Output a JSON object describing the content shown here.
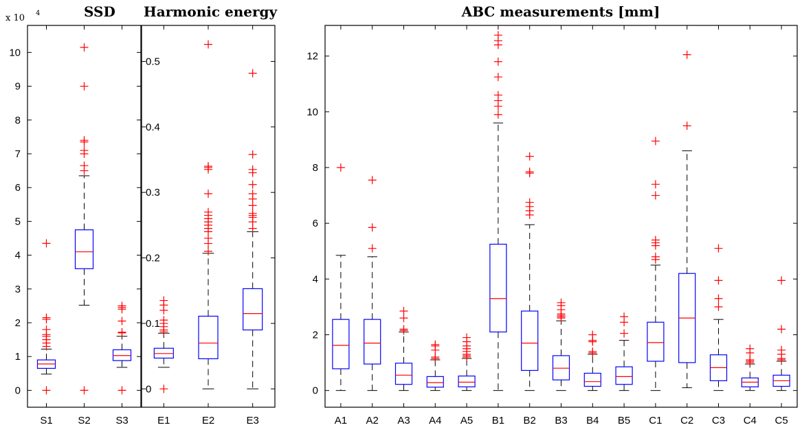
{
  "chart_data": [
    {
      "type": "box",
      "title": "SSD",
      "y_multiplier": {
        "base": "x 10",
        "exponent": "4"
      },
      "ylim": [
        -0.5,
        10.8
      ],
      "yticks": [
        0,
        1,
        2,
        3,
        4,
        5,
        6,
        7,
        8,
        9,
        10
      ],
      "categories": [
        "S1",
        "S2",
        "S3"
      ],
      "boxes": [
        {
          "q1": 0.65,
          "median": 0.78,
          "q3": 0.9,
          "whisker_low": 0.48,
          "whisker_high": 1.22,
          "outliers": [
            0,
            1.3,
            1.4,
            1.5,
            1.6,
            1.65,
            1.8,
            2.1,
            2.15,
            4.35
          ]
        },
        {
          "q1": 3.6,
          "median": 4.1,
          "q3": 4.75,
          "whisker_low": 2.52,
          "whisker_high": 6.35,
          "outliers": [
            0,
            6.5,
            6.65,
            7.0,
            7.1,
            7.35,
            7.4,
            9.0,
            10.15
          ]
        },
        {
          "q1": 0.88,
          "median": 1.03,
          "q3": 1.2,
          "whisker_low": 0.68,
          "whisker_high": 1.6,
          "outliers": [
            0,
            1.7,
            1.72,
            2.05,
            2.4,
            2.45,
            2.5
          ]
        }
      ]
    },
    {
      "type": "box",
      "title": "Harmonic energy",
      "ylim": [
        -0.028,
        0.555
      ],
      "yticks": [
        0,
        0.1,
        0.2,
        0.3,
        0.4,
        0.5
      ],
      "ytick_labels": [
        "0",
        "0.1",
        "0.2",
        "0.3",
        "0.4",
        "0.5"
      ],
      "categories": [
        "E1",
        "E2",
        "E3"
      ],
      "boxes": [
        {
          "q1": 0.047,
          "median": 0.054,
          "q3": 0.062,
          "whisker_low": 0.033,
          "whisker_high": 0.085,
          "outliers": [
            0,
            0.087,
            0.09,
            0.095,
            0.1,
            0.105,
            0.12,
            0.128,
            0.135
          ]
        },
        {
          "q1": 0.046,
          "median": 0.07,
          "q3": 0.111,
          "whisker_low": 0,
          "whisker_high": 0.207,
          "outliers": [
            0.21,
            0.222,
            0.23,
            0.24,
            0.245,
            0.25,
            0.255,
            0.26,
            0.265,
            0.27,
            0.298,
            0.335,
            0.338,
            0.34,
            0.526
          ]
        },
        {
          "q1": 0.09,
          "median": 0.115,
          "q3": 0.153,
          "whisker_low": 0,
          "whisker_high": 0.24,
          "outliers": [
            0.245,
            0.255,
            0.262,
            0.265,
            0.268,
            0.28,
            0.29,
            0.298,
            0.312,
            0.33,
            0.335,
            0.358,
            0.482
          ]
        }
      ]
    },
    {
      "type": "box",
      "title": "ABC measurements [mm]",
      "ylim": [
        -0.6,
        13.1
      ],
      "yticks": [
        0,
        2,
        4,
        6,
        8,
        10,
        12
      ],
      "categories": [
        "A1",
        "A2",
        "A3",
        "A4",
        "A5",
        "B1",
        "B2",
        "B3",
        "B4",
        "B5",
        "C1",
        "C2",
        "C3",
        "C4",
        "C5"
      ],
      "boxes": [
        {
          "q1": 0.78,
          "median": 1.62,
          "q3": 2.55,
          "whisker_low": 0,
          "whisker_high": 4.85,
          "outliers": [
            8.0
          ]
        },
        {
          "q1": 0.95,
          "median": 1.7,
          "q3": 2.55,
          "whisker_low": 0,
          "whisker_high": 4.8,
          "outliers": [
            5.1,
            5.85,
            7.55
          ]
        },
        {
          "q1": 0.22,
          "median": 0.55,
          "q3": 0.98,
          "whisker_low": 0,
          "whisker_high": 2.1,
          "outliers": [
            2.15,
            2.2,
            2.6,
            2.85
          ]
        },
        {
          "q1": 0.12,
          "median": 0.28,
          "q3": 0.5,
          "whisker_low": 0,
          "whisker_high": 1.1,
          "outliers": [
            1.15,
            1.2,
            1.45,
            1.6,
            1.65
          ]
        },
        {
          "q1": 0.13,
          "median": 0.3,
          "q3": 0.52,
          "whisker_low": 0,
          "whisker_high": 1.15,
          "outliers": [
            1.2,
            1.25,
            1.3,
            1.4,
            1.5,
            1.6,
            1.75,
            1.9
          ]
        },
        {
          "q1": 2.1,
          "median": 3.3,
          "q3": 5.25,
          "whisker_low": 0,
          "whisker_high": 9.6,
          "outliers": [
            9.9,
            10.2,
            10.4,
            10.6,
            11.25,
            11.8,
            12.4,
            12.55,
            12.75
          ]
        },
        {
          "q1": 0.72,
          "median": 1.7,
          "q3": 2.85,
          "whisker_low": 0,
          "whisker_high": 5.95,
          "outliers": [
            6.3,
            6.45,
            6.6,
            6.75,
            7.8,
            7.85,
            8.4
          ]
        },
        {
          "q1": 0.38,
          "median": 0.8,
          "q3": 1.25,
          "whisker_low": 0,
          "whisker_high": 2.5,
          "outliers": [
            2.6,
            2.65,
            2.7,
            2.75,
            2.9,
            3.05,
            3.15
          ]
        },
        {
          "q1": 0.15,
          "median": 0.32,
          "q3": 0.62,
          "whisker_low": 0,
          "whisker_high": 1.3,
          "outliers": [
            1.35,
            1.4,
            1.75,
            1.8,
            2.0
          ]
        },
        {
          "q1": 0.22,
          "median": 0.5,
          "q3": 0.85,
          "whisker_low": 0,
          "whisker_high": 1.8,
          "outliers": [
            2.05,
            2.45,
            2.65
          ]
        },
        {
          "q1": 1.05,
          "median": 1.72,
          "q3": 2.45,
          "whisker_low": 0,
          "whisker_high": 4.5,
          "outliers": [
            4.7,
            4.8,
            5.2,
            5.3,
            5.4,
            7.0,
            7.4,
            8.95
          ]
        },
        {
          "q1": 1.0,
          "median": 2.6,
          "q3": 4.2,
          "whisker_low": 0.1,
          "whisker_high": 8.6,
          "outliers": [
            9.5,
            12.05
          ]
        },
        {
          "q1": 0.35,
          "median": 0.82,
          "q3": 1.28,
          "whisker_low": 0,
          "whisker_high": 2.55,
          "outliers": [
            3.0,
            3.3,
            3.95,
            5.1
          ]
        },
        {
          "q1": 0.13,
          "median": 0.3,
          "q3": 0.45,
          "whisker_low": 0,
          "whisker_high": 0.95,
          "outliers": [
            1.0,
            1.05,
            1.1,
            1.35,
            1.5
          ]
        },
        {
          "q1": 0.15,
          "median": 0.35,
          "q3": 0.55,
          "whisker_low": 0,
          "whisker_high": 1.05,
          "outliers": [
            1.1,
            1.15,
            1.3,
            1.45,
            2.2,
            3.95
          ]
        }
      ]
    }
  ],
  "colors": {
    "box": "#0000ff",
    "median": "#ff0000",
    "outlier": "#ff0000",
    "whisker": "#000000",
    "axis": "#000000"
  }
}
